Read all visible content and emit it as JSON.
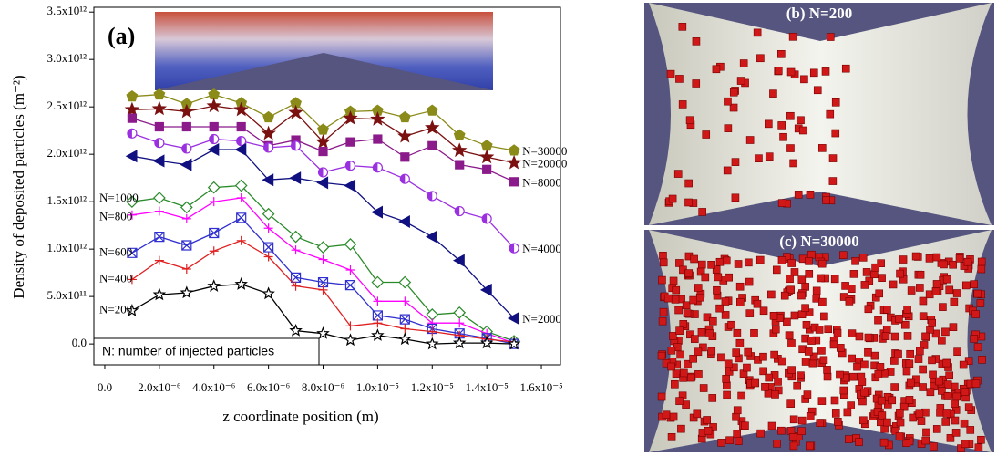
{
  "chart_data": {
    "type": "line",
    "panel_label": "(a)",
    "x_label": "z coordinate position (m)",
    "y_label": "Density of deposited particles (m⁻²)",
    "note": "N: number of injected particles",
    "xlim": [
      -4e-07,
      1.67e-05
    ],
    "ylim": [
      -220000000000.0,
      3550000000000.0
    ],
    "xticks": [
      {
        "value": 0,
        "label": "0.0"
      },
      {
        "value": 2e-06,
        "label": "2.0x10⁻⁶"
      },
      {
        "value": 4e-06,
        "label": "4.0x10⁻⁶"
      },
      {
        "value": 6e-06,
        "label": "6.0x10⁻⁶"
      },
      {
        "value": 8e-06,
        "label": "8.0x10⁻⁶"
      },
      {
        "value": 1e-05,
        "label": "1.0x10⁻⁵"
      },
      {
        "value": 1.2e-05,
        "label": "1.2x10⁻⁵"
      },
      {
        "value": 1.4e-05,
        "label": "1.4x10⁻⁵"
      },
      {
        "value": 1.6e-05,
        "label": "1.6x10⁻⁵"
      }
    ],
    "yticks": [
      {
        "value": 0,
        "label": "0.0"
      },
      {
        "value": 500000000000.0,
        "label": "5.0x10¹¹"
      },
      {
        "value": 1000000000000.0,
        "label": "1.0x10¹²"
      },
      {
        "value": 1500000000000.0,
        "label": "1.5x10¹²"
      },
      {
        "value": 2000000000000.0,
        "label": "2.0x10¹²"
      },
      {
        "value": 2500000000000.0,
        "label": "2.5x10¹²"
      },
      {
        "value": 3000000000000.0,
        "label": "3.0x10¹²"
      },
      {
        "value": 3500000000000.0,
        "label": "3.5x10¹²"
      }
    ],
    "x": [
      1e-06,
      2e-06,
      3e-06,
      4e-06,
      5e-06,
      6e-06,
      7e-06,
      8e-06,
      9e-06,
      1e-05,
      1.1e-05,
      1.2e-05,
      1.3e-05,
      1.4e-05,
      1.5e-05
    ],
    "series": [
      {
        "name": "N=30000",
        "color": "#8b8b1a",
        "marker": "pentagon",
        "values": [
          2610000000000.0,
          2630000000000.0,
          2530000000000.0,
          2630000000000.0,
          2540000000000.0,
          2390000000000.0,
          2540000000000.0,
          2260000000000.0,
          2450000000000.0,
          2460000000000.0,
          2390000000000.0,
          2460000000000.0,
          2200000000000.0,
          2090000000000.0,
          2040000000000.0
        ]
      },
      {
        "name": "N=20000",
        "color": "#7a1010",
        "marker": "star",
        "values": [
          2470000000000.0,
          2480000000000.0,
          2450000000000.0,
          2510000000000.0,
          2470000000000.0,
          2220000000000.0,
          2440000000000.0,
          2130000000000.0,
          2380000000000.0,
          2370000000000.0,
          2190000000000.0,
          2280000000000.0,
          2040000000000.0,
          1970000000000.0,
          1910000000000.0
        ]
      },
      {
        "name": "N=8000",
        "color": "#8b1a8b",
        "marker": "square",
        "values": [
          2380000000000.0,
          2290000000000.0,
          2290000000000.0,
          2290000000000.0,
          2290000000000.0,
          2090000000000.0,
          2150000000000.0,
          2030000000000.0,
          2130000000000.0,
          2160000000000.0,
          1970000000000.0,
          2090000000000.0,
          1890000000000.0,
          1840000000000.0,
          1710000000000.0
        ]
      },
      {
        "name": "N=4000",
        "color": "#9b30e0",
        "marker": "half-circle",
        "values": [
          2220000000000.0,
          2120000000000.0,
          2060000000000.0,
          2160000000000.0,
          2140000000000.0,
          2070000000000.0,
          2090000000000.0,
          1810000000000.0,
          1880000000000.0,
          1860000000000.0,
          1740000000000.0,
          1560000000000.0,
          1400000000000.0,
          1320000000000.0,
          1010000000000.0
        ]
      },
      {
        "name": "N=2000",
        "color": "#101080",
        "marker": "triangle",
        "values": [
          1980000000000.0,
          1930000000000.0,
          1890000000000.0,
          2050000000000.0,
          2050000000000.0,
          1730000000000.0,
          1750000000000.0,
          1700000000000.0,
          1670000000000.0,
          1390000000000.0,
          1290000000000.0,
          1130000000000.0,
          880000000000.0,
          570000000000.0,
          270000000000.0
        ]
      },
      {
        "name": "N=1000",
        "color": "#2a8a2a",
        "marker": "diamond",
        "values": [
          1500000000000.0,
          1540000000000.0,
          1440000000000.0,
          1650000000000.0,
          1670000000000.0,
          1370000000000.0,
          1130000000000.0,
          1020000000000.0,
          1050000000000.0,
          650000000000.0,
          650000000000.0,
          310000000000.0,
          330000000000.0,
          130000000000.0,
          30000000000.0
        ]
      },
      {
        "name": "N=800",
        "color": "#ff00ff",
        "marker": "plus",
        "values": [
          1360000000000.0,
          1400000000000.0,
          1320000000000.0,
          1500000000000.0,
          1540000000000.0,
          1220000000000.0,
          990000000000.0,
          890000000000.0,
          780000000000.0,
          450000000000.0,
          450000000000.0,
          220000000000.0,
          220000000000.0,
          110000000000.0,
          10000000000.0
        ]
      },
      {
        "name": "N=600",
        "color": "#3030d0",
        "marker": "x-square",
        "values": [
          960000000000.0,
          1130000000000.0,
          1040000000000.0,
          1170000000000.0,
          1330000000000.0,
          1020000000000.0,
          700000000000.0,
          650000000000.0,
          620000000000.0,
          300000000000.0,
          260000000000.0,
          160000000000.0,
          110000000000.0,
          60000000000.0,
          0
        ]
      },
      {
        "name": "N=400",
        "color": "#e02020",
        "marker": "plus",
        "values": [
          680000000000.0,
          880000000000.0,
          790000000000.0,
          980000000000.0,
          1090000000000.0,
          920000000000.0,
          610000000000.0,
          570000000000.0,
          190000000000.0,
          220000000000.0,
          160000000000.0,
          130000000000.0,
          90000000000.0,
          50000000000.0,
          20000000000.0
        ]
      },
      {
        "name": "N=200",
        "color": "#000000",
        "marker": "star-open",
        "values": [
          350000000000.0,
          520000000000.0,
          540000000000.0,
          610000000000.0,
          630000000000.0,
          530000000000.0,
          140000000000.0,
          110000000000.0,
          40000000000.0,
          90000000000.0,
          50000000000.0,
          0,
          10000000000.0,
          10000000000.0,
          0
        ]
      }
    ],
    "panels": [
      {
        "title": "(b) N=200"
      },
      {
        "title": "(c) N=30000"
      }
    ]
  }
}
